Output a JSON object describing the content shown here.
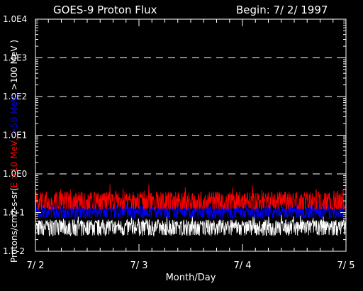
{
  "chart_data": {
    "type": "line",
    "title": "GOES-9 Proton Flux",
    "begin_label": "Begin: 7/ 2/ 1997",
    "xlabel": "Month/Day",
    "ylabel": {
      "prefix": "Protons/cm2-s-sr(",
      "series_labels": [
        "E >10 MeV,",
        ">50 MeV,",
        ">100 MeV )"
      ]
    },
    "y_scale": "log",
    "ylim": [
      0.01,
      10000
    ],
    "y_tick_labels": [
      "1.0E4",
      "1.0E3",
      "1.0E2",
      "1.0E1",
      "1.0E0",
      "1.E-1",
      "1.E-2"
    ],
    "y_tick_values": [
      10000,
      1000,
      100,
      10,
      1,
      0.1,
      0.01
    ],
    "x_categories": [
      "7/ 2",
      "7/ 3",
      "7/ 4",
      "7/ 5"
    ],
    "grid": {
      "horizontal_dashed": [
        1000,
        100,
        10,
        1
      ]
    },
    "series": [
      {
        "name": "E >10 MeV",
        "color": "#ff0000",
        "typical": 0.2,
        "range": [
          0.12,
          0.55
        ]
      },
      {
        "name": ">50 MeV",
        "color": "#0000ff",
        "typical": 0.11,
        "range": [
          0.07,
          0.2
        ]
      },
      {
        "name": ">100 MeV",
        "color": "#ffffff",
        "typical": 0.045,
        "range": [
          0.025,
          0.09
        ]
      }
    ]
  }
}
